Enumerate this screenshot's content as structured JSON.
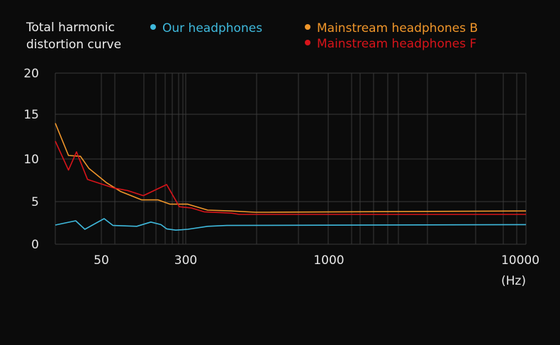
{
  "chart_data": {
    "type": "line",
    "title": "Total harmonic distortion curve",
    "xlabel": "(Hz)",
    "ylabel": "",
    "xscale": "log",
    "xlim": [
      20,
      10300
    ],
    "ylim": [
      0,
      20
    ],
    "grid": true,
    "legend_placement": "top",
    "y_ticks": [
      "0",
      "5",
      "10",
      "15",
      "20"
    ],
    "x_ticks": [
      {
        "value": 50,
        "label": "50"
      },
      {
        "value": 300,
        "label": "300"
      },
      {
        "value": 1000,
        "label": "1000"
      },
      {
        "value": 10000,
        "label": "10000"
      }
    ],
    "series": [
      {
        "name": "Our headphones",
        "color": "#3fb9dc",
        "x": [
          20,
          30,
          36,
          53,
          64,
          106,
          143,
          177,
          200,
          243,
          305,
          361,
          424,
          10300
        ],
        "y": [
          2.25,
          2.75,
          1.75,
          3.0,
          2.2,
          2.1,
          2.6,
          2.3,
          1.8,
          1.65,
          1.75,
          2.1,
          2.2,
          2.3
        ]
      },
      {
        "name": "Mainstream headphones B",
        "color": "#f0962a",
        "x": [
          20,
          26,
          33,
          39,
          56,
          75,
          118,
          167,
          215,
          305,
          361,
          441,
          539,
          10300
        ],
        "y": [
          14.0,
          10.4,
          10.3,
          8.9,
          7.2,
          6.2,
          5.2,
          5.2,
          4.7,
          4.7,
          4.0,
          3.9,
          3.75,
          3.9
        ]
      },
      {
        "name": "Mainstream headphones F",
        "color": "#d8141a",
        "x": [
          20,
          26,
          30.5,
          38,
          65,
          87,
          122,
          200,
          262,
          315,
          350,
          441,
          470,
          10300
        ],
        "y": [
          12.0,
          8.7,
          10.8,
          7.6,
          6.6,
          6.3,
          5.7,
          7.0,
          4.4,
          4.25,
          3.8,
          3.65,
          3.5,
          3.5
        ]
      }
    ]
  }
}
